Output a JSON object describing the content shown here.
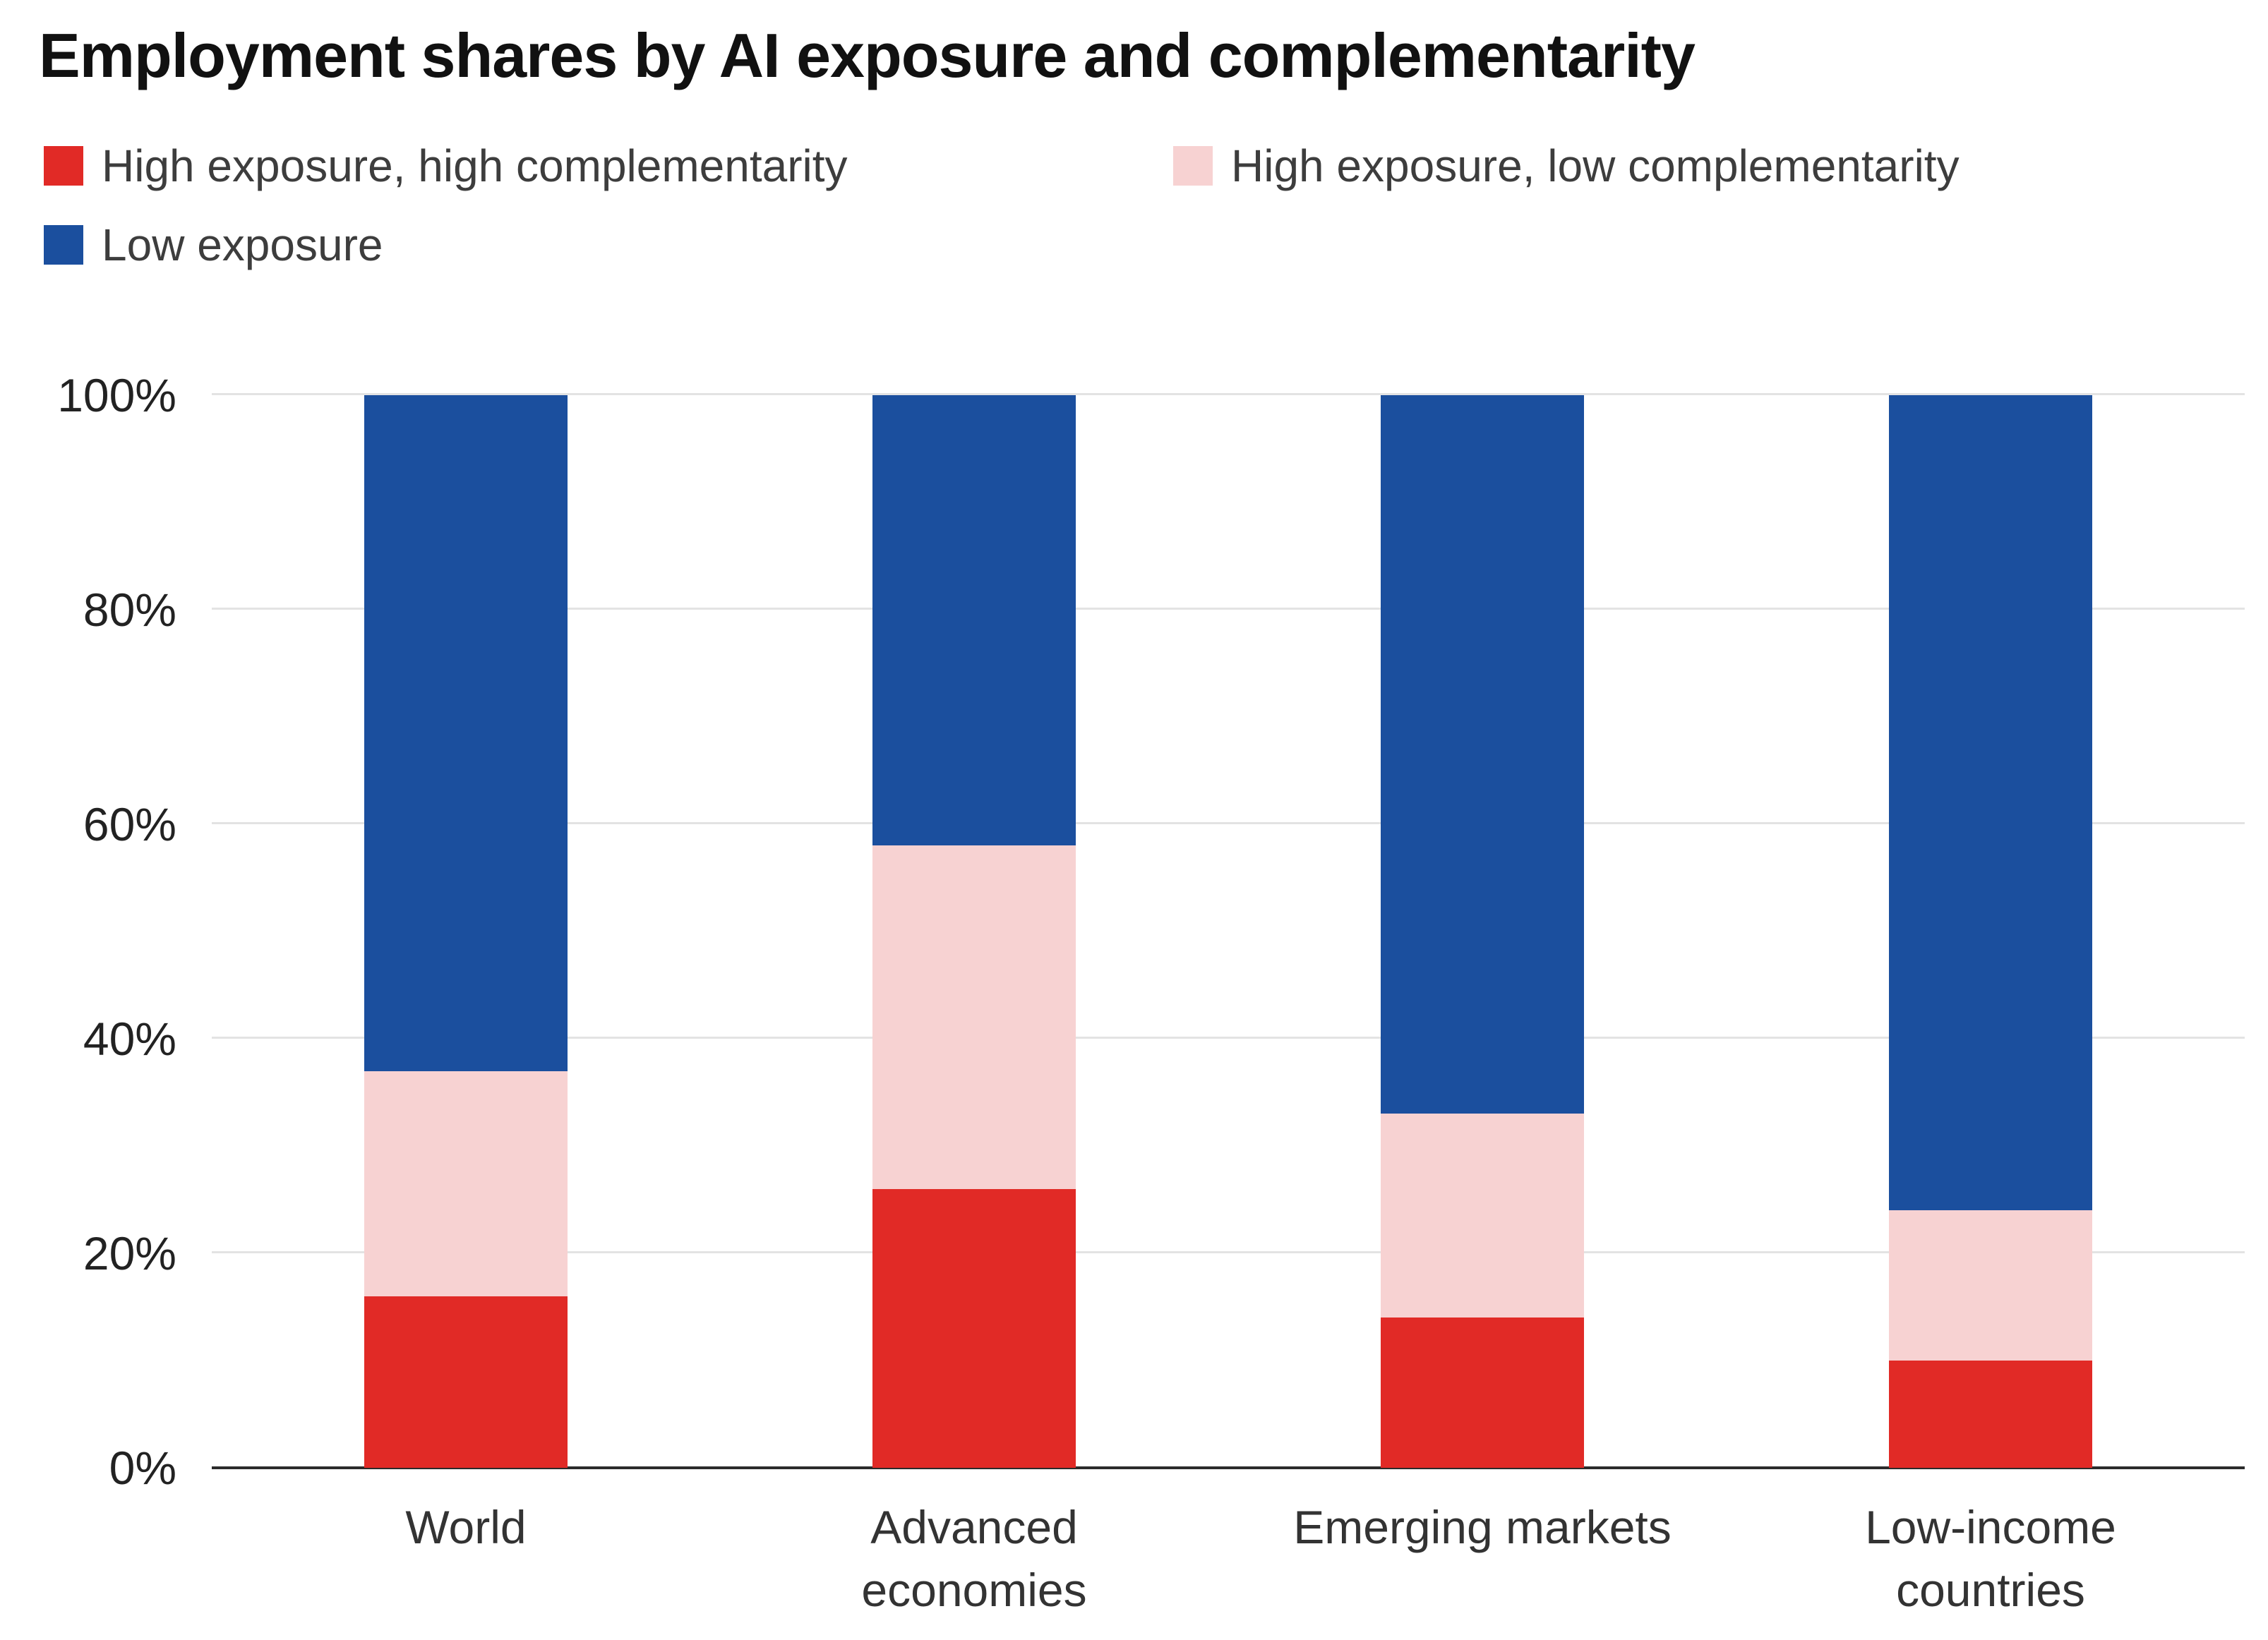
{
  "chart_data": {
    "type": "bar",
    "stacked": true,
    "title": "Employment shares by AI exposure and complementarity",
    "categories": [
      "World",
      "Advanced economies",
      "Emerging markets",
      "Low-income countries"
    ],
    "series": [
      {
        "name": "High exposure, high complementarity",
        "color": "#e12a26",
        "values": [
          16,
          26,
          14,
          10
        ]
      },
      {
        "name": "High exposure, low complementarity",
        "color": "#f7d2d2",
        "values": [
          21,
          32,
          19,
          14
        ]
      },
      {
        "name": "Low exposure",
        "color": "#1b4f9e",
        "values": [
          63,
          42,
          67,
          76
        ]
      }
    ],
    "ylim": [
      0,
      100
    ],
    "y_ticks": [
      "0%",
      "20%",
      "40%",
      "60%",
      "80%",
      "100%"
    ],
    "grid": true,
    "legend_position": "top-left",
    "axis_color": "#2b2b2b",
    "gridline_color": "#e3e3e3"
  }
}
